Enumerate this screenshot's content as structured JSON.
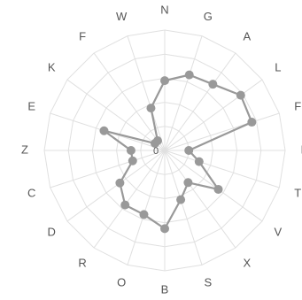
{
  "chart_data": {
    "type": "radar",
    "categories": [
      "N",
      "G",
      "A",
      "L",
      "F",
      "P",
      "T",
      "V",
      "X",
      "S",
      "B",
      "O",
      "R",
      "D",
      "C",
      "Z",
      "E",
      "K",
      "F",
      "W"
    ],
    "labels": {
      "N": "N",
      "G": "G",
      "A": "A",
      "L": "L",
      "F": "F",
      "P": "P",
      "T": "T",
      "V": "V",
      "X": "X",
      "S": "S",
      "B": "B",
      "O": "O",
      "R": "R",
      "D": "D",
      "C": "C",
      "Z": "Z",
      "E": "E",
      "K": "K",
      "W": "W"
    },
    "series": [
      {
        "values": [
          58,
          66,
          68,
          78,
          76,
          20,
          30,
          55,
          33,
          43,
          65,
          56,
          56,
          46,
          28,
          28,
          53,
          10,
          10,
          37
        ]
      }
    ],
    "rlim": [
      0,
      100
    ],
    "center_label": "0",
    "grid": true,
    "colors": {
      "line": "#999999",
      "grid": "#e0e0e0",
      "label": "#555555"
    }
  }
}
